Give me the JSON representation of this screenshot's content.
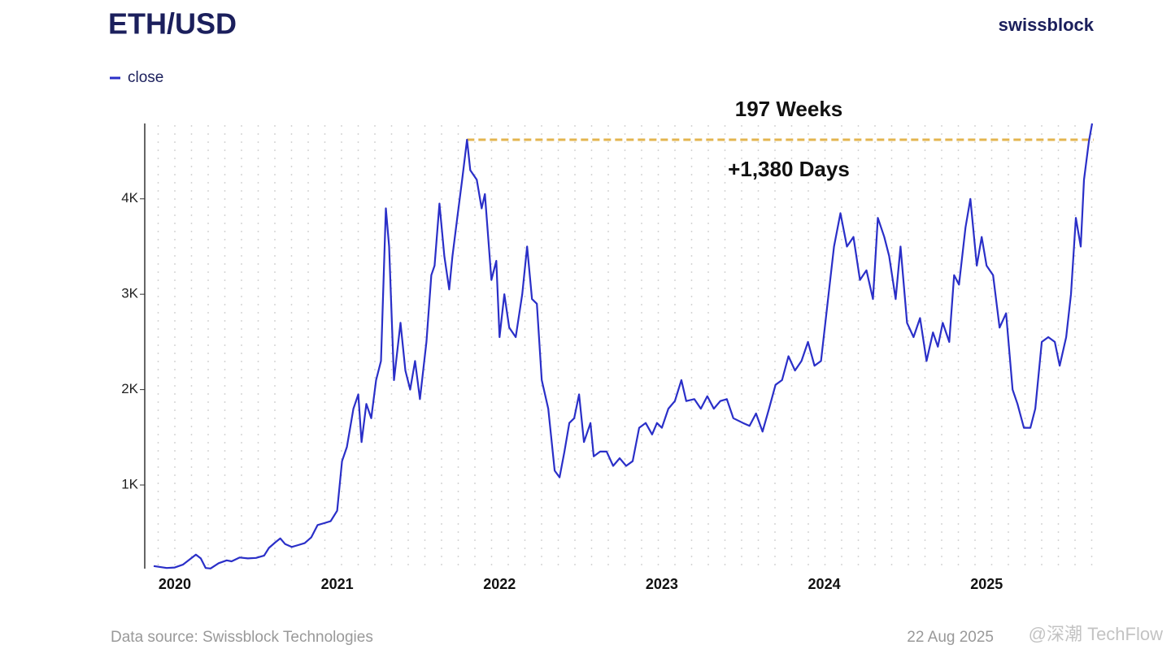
{
  "chart_data": {
    "type": "line",
    "title": "ETH/USD",
    "brand": "swissblock",
    "source": "Data source: Swissblock Technologies",
    "date": "22 Aug 2025",
    "watermark": "@深潮 TechFlow",
    "annotations": [
      "197 Weeks",
      "+1,380 Days"
    ],
    "reference_line": {
      "value": 4620,
      "x_start": 2021.8,
      "color": "#e3b54f"
    },
    "xlim": [
      2019.85,
      2025.66
    ],
    "xticks": [
      2020,
      2021,
      2022,
      2023,
      2024,
      2025
    ],
    "ylim": [
      123,
      4790
    ],
    "yticks": [
      {
        "value": 1000,
        "label": "1K"
      },
      {
        "value": 2000,
        "label": "2K"
      },
      {
        "value": 3000,
        "label": "3K"
      },
      {
        "value": 4000,
        "label": "4K"
      }
    ],
    "x": [
      2019.87,
      2019.95,
      2020.0,
      2020.05,
      2020.1,
      2020.13,
      2020.16,
      2020.19,
      2020.22,
      2020.27,
      2020.32,
      2020.35,
      2020.4,
      2020.45,
      2020.5,
      2020.55,
      2020.58,
      2020.62,
      2020.65,
      2020.68,
      2020.72,
      2020.76,
      2020.8,
      2020.84,
      2020.88,
      2020.92,
      2020.96,
      2021.0,
      2021.03,
      2021.06,
      2021.1,
      2021.13,
      2021.15,
      2021.18,
      2021.21,
      2021.24,
      2021.27,
      2021.3,
      2021.32,
      2021.35,
      2021.39,
      2021.42,
      2021.45,
      2021.48,
      2021.51,
      2021.55,
      2021.58,
      2021.6,
      2021.63,
      2021.66,
      2021.69,
      2021.71,
      2021.74,
      2021.77,
      2021.8,
      2021.82,
      2021.86,
      2021.89,
      2021.91,
      2021.95,
      2021.98,
      2022.0,
      2022.03,
      2022.06,
      2022.1,
      2022.14,
      2022.17,
      2022.2,
      2022.23,
      2022.26,
      2022.3,
      2022.34,
      2022.37,
      2022.4,
      2022.43,
      2022.46,
      2022.49,
      2022.52,
      2022.56,
      2022.58,
      2022.62,
      2022.66,
      2022.7,
      2022.74,
      2022.78,
      2022.82,
      2022.86,
      2022.9,
      2022.94,
      2022.97,
      2023.0,
      2023.04,
      2023.08,
      2023.12,
      2023.15,
      2023.2,
      2023.24,
      2023.28,
      2023.32,
      2023.36,
      2023.4,
      2023.44,
      2023.5,
      2023.54,
      2023.58,
      2023.62,
      2023.66,
      2023.7,
      2023.74,
      2023.78,
      2023.82,
      2023.86,
      2023.9,
      2023.94,
      2023.98,
      2024.02,
      2024.06,
      2024.1,
      2024.14,
      2024.18,
      2024.22,
      2024.26,
      2024.3,
      2024.33,
      2024.37,
      2024.4,
      2024.44,
      2024.47,
      2024.51,
      2024.55,
      2024.59,
      2024.63,
      2024.67,
      2024.7,
      2024.73,
      2024.77,
      2024.8,
      2024.83,
      2024.87,
      2024.9,
      2024.94,
      2024.97,
      2025.0,
      2025.04,
      2025.08,
      2025.12,
      2025.16,
      2025.19,
      2025.23,
      2025.27,
      2025.3,
      2025.34,
      2025.38,
      2025.42,
      2025.45,
      2025.49,
      2025.52,
      2025.55,
      2025.58,
      2025.6,
      2025.63,
      2025.65
    ],
    "series": [
      {
        "name": "close",
        "color": "#2a2fc8",
        "values": [
          150,
          130,
          135,
          165,
          230,
          270,
          230,
          130,
          125,
          180,
          210,
          200,
          240,
          230,
          235,
          260,
          340,
          400,
          440,
          380,
          350,
          370,
          390,
          450,
          580,
          600,
          620,
          730,
          1250,
          1400,
          1800,
          1950,
          1450,
          1850,
          1700,
          2100,
          2300,
          3900,
          3500,
          2100,
          2700,
          2200,
          2000,
          2300,
          1900,
          2500,
          3200,
          3300,
          3950,
          3400,
          3050,
          3400,
          3800,
          4200,
          4620,
          4300,
          4200,
          3900,
          4050,
          3150,
          3350,
          2550,
          3000,
          2650,
          2550,
          3000,
          3500,
          2950,
          2900,
          2100,
          1800,
          1150,
          1080,
          1350,
          1650,
          1700,
          1950,
          1450,
          1650,
          1300,
          1350,
          1350,
          1200,
          1280,
          1200,
          1250,
          1600,
          1650,
          1530,
          1650,
          1600,
          1800,
          1880,
          2100,
          1880,
          1900,
          1800,
          1930,
          1800,
          1880,
          1900,
          1700,
          1650,
          1620,
          1750,
          1560,
          1800,
          2050,
          2100,
          2350,
          2200,
          2300,
          2500,
          2250,
          2300,
          2900,
          3500,
          3850,
          3500,
          3600,
          3150,
          3250,
          2950,
          3800,
          3600,
          3400,
          2950,
          3500,
          2700,
          2550,
          2750,
          2300,
          2600,
          2450,
          2700,
          2500,
          3200,
          3100,
          3700,
          4000,
          3300,
          3600,
          3300,
          3200,
          2650,
          2800,
          2000,
          1850,
          1600,
          1600,
          1800,
          2500,
          2550,
          2500,
          2250,
          2550,
          3000,
          3800,
          3500,
          4200,
          4600,
          4790
        ]
      }
    ]
  }
}
